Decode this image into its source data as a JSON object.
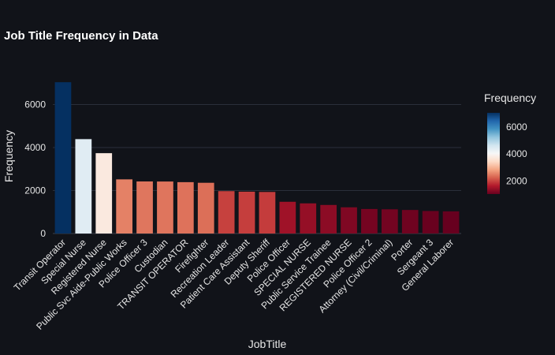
{
  "chart_data": {
    "type": "bar",
    "title": "Job Title Frequency in Data",
    "xlabel": "JobTitle",
    "ylabel": "Frequency",
    "ylim": [
      0,
      7300
    ],
    "yticks": [
      0,
      2000,
      4000,
      6000
    ],
    "grid": true,
    "categories": [
      "Transit Operator",
      "Special Nurse",
      "Registered Nurse",
      "Public Svc Aide-Public Works",
      "Police Officer 3",
      "Custodian",
      "TRANSIT OPERATOR",
      "Firefighter",
      "Recreation Leader",
      "Patient Care Assistant",
      "Deputy Sheriff",
      "Police Officer",
      "SPECIAL NURSE",
      "Public Service Trainee",
      "REGISTERED NURSE",
      "Police Officer 2",
      "Attorney (Civil/Criminal)",
      "Porter",
      "Sergeant 3",
      "General Laborer"
    ],
    "values": [
      7036,
      4389,
      3736,
      2518,
      2421,
      2418,
      2388,
      2359,
      1971,
      1945,
      1933,
      1476,
      1402,
      1328,
      1219,
      1141,
      1126,
      1095,
      1047,
      1030
    ],
    "colorbar": {
      "title": "Frequency",
      "ticks": [
        2000,
        4000,
        6000
      ],
      "min": 1030,
      "max": 7036,
      "colorscale": [
        "#67001f",
        "#b2182b",
        "#d6604d",
        "#f4a582",
        "#fddbc7",
        "#f7f7f7",
        "#d1e5f0",
        "#92c5de",
        "#4393c3",
        "#2166ac",
        "#053061"
      ]
    }
  }
}
